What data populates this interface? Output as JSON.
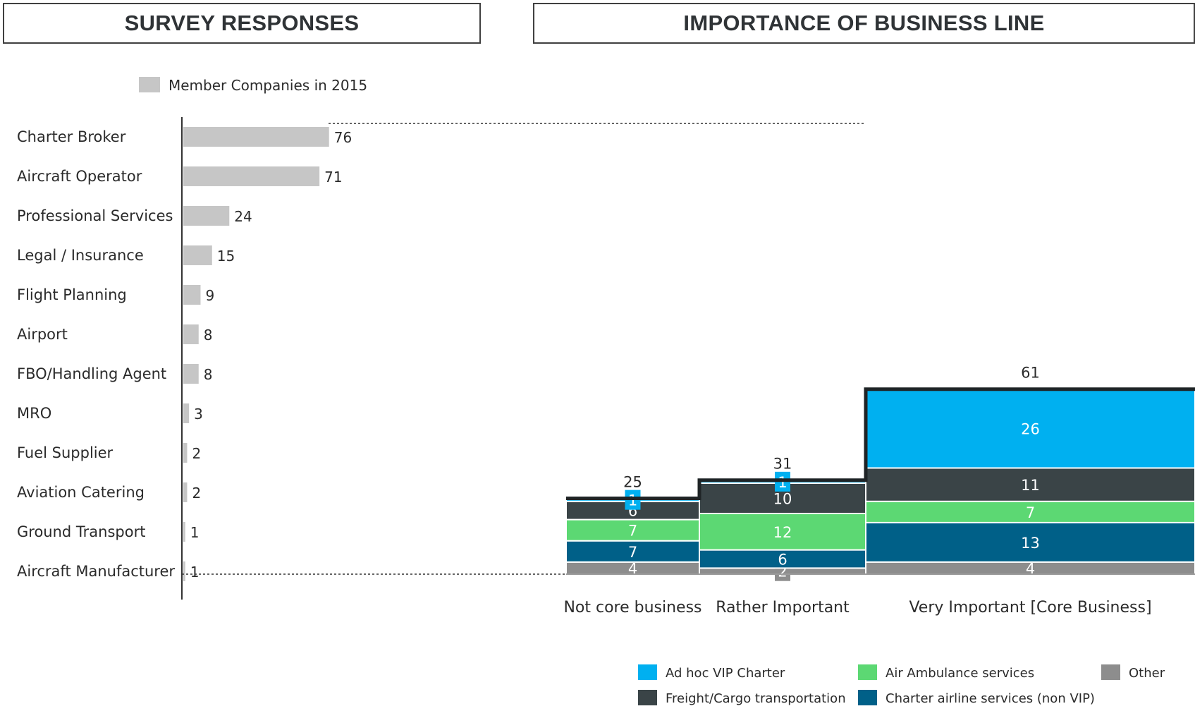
{
  "titles": {
    "left": "SURVEY RESPONSES",
    "right": "IMPORTANCE OF BUSINESS LINE"
  },
  "chart_data": [
    {
      "type": "bar",
      "orientation": "horizontal",
      "title": "SURVEY RESPONSES",
      "legend": [
        {
          "name": "Member Companies in 2015",
          "color": "#c6c6c6"
        }
      ],
      "legend_position": "top",
      "categories": [
        "Charter Broker",
        "Aircraft Operator",
        "Professional Services",
        "Legal / Insurance",
        "Flight Planning",
        "Airport",
        "FBO/Handling Agent",
        "MRO",
        "Fuel Supplier",
        "Aviation Catering",
        "Ground Transport",
        "Aircraft Manufacturer"
      ],
      "values": [
        76,
        71,
        24,
        15,
        9,
        8,
        8,
        3,
        2,
        2,
        1,
        1
      ],
      "bar_color": "#c6c6c6",
      "grid": false
    },
    {
      "type": "bar",
      "stacked": true,
      "variable_width": true,
      "title": "IMPORTANCE OF BUSINESS LINE",
      "categories": [
        "Not core business",
        "Rather Important",
        "Very Important [Core Business]"
      ],
      "totals": [
        25,
        31,
        61
      ],
      "series": [
        {
          "name": "Other",
          "color": "#8d8d8d",
          "values": [
            4,
            2,
            4
          ]
        },
        {
          "name": "Charter airline services (non VIP)",
          "color": "#006088",
          "values": [
            7,
            6,
            13
          ]
        },
        {
          "name": "Air Ambulance services",
          "color": "#5cd873",
          "values": [
            7,
            12,
            7
          ]
        },
        {
          "name": "Freight/Cargo transportation",
          "color": "#3a4447",
          "values": [
            6,
            10,
            11
          ]
        },
        {
          "name": "Ad hoc VIP Charter",
          "color": "#00b0f0",
          "values": [
            1,
            1,
            26
          ]
        }
      ],
      "legend": [
        {
          "name": "Ad hoc VIP Charter",
          "color": "#00b0f0"
        },
        {
          "name": "Air Ambulance services",
          "color": "#5cd873"
        },
        {
          "name": "Other",
          "color": "#8d8d8d"
        },
        {
          "name": "Freight/Cargo transportation",
          "color": "#3a4447"
        },
        {
          "name": "Charter airline services (non VIP)",
          "color": "#006088"
        }
      ],
      "legend_position": "bottom-right",
      "grid": false
    }
  ]
}
